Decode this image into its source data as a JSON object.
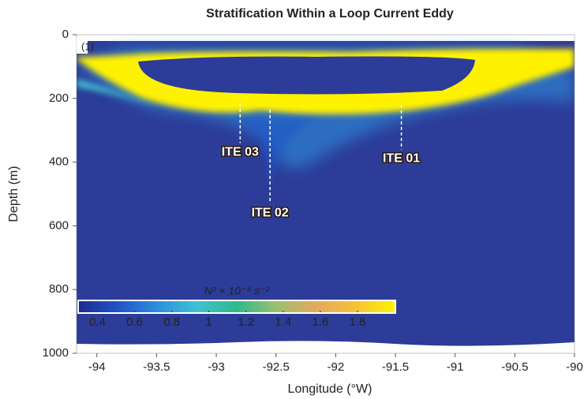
{
  "chart_data": {
    "type": "heatmap",
    "title": "Stratification Within a Loop Current Eddy",
    "panel_label": "(1)",
    "x_label": "Longitude (°W)",
    "y_label": "Depth (m)",
    "xlim": [
      -94.17,
      -90
    ],
    "xticks": [
      -94,
      -93.5,
      -93,
      -92.5,
      -92,
      -91.5,
      -91,
      -90.5,
      -90
    ],
    "ylim": [
      0,
      1000
    ],
    "y_inverted": true,
    "yticks": [
      0,
      200,
      400,
      600,
      800,
      1000
    ],
    "colorbar": {
      "label": "N² × 10⁻⁴ s⁻²",
      "clim": [
        0.3,
        2.0
      ],
      "ticks": [
        0.4,
        0.6,
        0.8,
        1.0,
        1.2,
        1.4,
        1.6,
        1.8
      ],
      "colormap": [
        "#1c2c8c",
        "#1f55c8",
        "#2f8fdc",
        "#3fc2d0",
        "#2fb98a",
        "#9ac070",
        "#e4a860",
        "#f6c238",
        "#fff200"
      ]
    },
    "annotations": [
      {
        "text": "ITE 03",
        "x": -92.8,
        "y": [
          215,
          340
        ]
      },
      {
        "text": "ITE 02",
        "x": -92.55,
        "y": [
          235,
          530
        ]
      },
      {
        "text": "ITE 01",
        "x": -91.45,
        "y": [
          220,
          360
        ]
      }
    ]
  }
}
